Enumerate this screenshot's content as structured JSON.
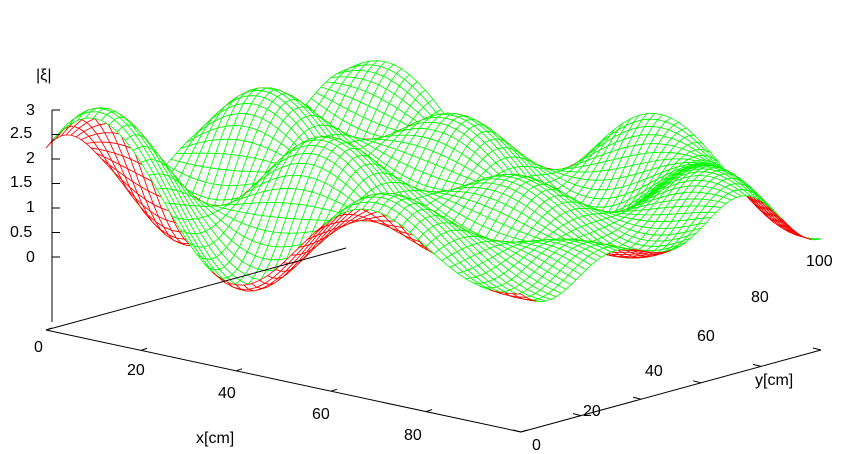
{
  "chart_data": {
    "type": "surface3d",
    "title": "",
    "xlabel": "x[cm]",
    "ylabel": "y[cm]",
    "zlabel": "|ξ|",
    "xlim": [
      0,
      100
    ],
    "ylim": [
      0,
      100
    ],
    "zlim": [
      0,
      3
    ],
    "x_ticks": [
      "20",
      "40",
      "60",
      "80"
    ],
    "y_ticks": [
      "0",
      "20",
      "40",
      "60",
      "80",
      "100"
    ],
    "z_ticks": [
      "3",
      "2.5",
      "2",
      "1.5",
      "1",
      "0.5",
      "0"
    ],
    "x_origin_label": "0",
    "grid": false,
    "colors": {
      "top_surface": "#00ff00",
      "bottom_surface": "#ff0000",
      "axes": "#000000"
    },
    "mesh": {
      "nx": 60,
      "ny": 60
    },
    "surface": "standing-wave interference pattern, |xi| in roughly 0.5 to 3.1"
  }
}
